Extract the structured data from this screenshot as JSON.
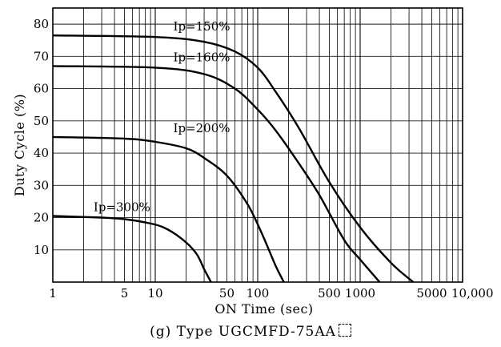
{
  "chart_data": {
    "type": "line",
    "xscale": "log",
    "xlabel": "ON Time (sec)",
    "ylabel": "Duty Cycle (%)",
    "xlim": [
      1,
      10000
    ],
    "ylim": [
      0,
      85
    ],
    "grid": true,
    "x_ticks": [
      {
        "value": 1,
        "label": "1"
      },
      {
        "value": 5,
        "label": "5"
      },
      {
        "value": 10,
        "label": "10"
      },
      {
        "value": 50,
        "label": "50"
      },
      {
        "value": 100,
        "label": "100"
      },
      {
        "value": 500,
        "label": "500"
      },
      {
        "value": 1000,
        "label": "1000"
      },
      {
        "value": 5000,
        "label": "5000"
      },
      {
        "value": 10000,
        "label": "10,000"
      }
    ],
    "y_ticks": [
      10,
      20,
      30,
      40,
      50,
      60,
      70,
      80
    ],
    "series": [
      {
        "name": "Ip=150%",
        "x": [
          1,
          10,
          30,
          60,
          100,
          150,
          250,
          500,
          1000,
          2000,
          3300
        ],
        "values": [
          76.5,
          76,
          74.5,
          71.5,
          66.5,
          59,
          48,
          31,
          17,
          6,
          0
        ]
      },
      {
        "name": "Ip=160%",
        "x": [
          1,
          10,
          30,
          60,
          100,
          150,
          250,
          400,
          700,
          1000,
          1550
        ],
        "values": [
          67,
          66.5,
          64.5,
          60,
          53.5,
          47,
          37,
          27,
          13,
          7,
          0
        ]
      },
      {
        "name": "Ip=200%",
        "x": [
          1,
          5,
          10,
          20,
          30,
          50,
          80,
          110,
          150,
          180
        ],
        "values": [
          45,
          44.5,
          43.5,
          41.5,
          38.5,
          33,
          24,
          15,
          5,
          0
        ]
      },
      {
        "name": "Ip=300%",
        "x": [
          1,
          3,
          5,
          8,
          12,
          18,
          25,
          30,
          35
        ],
        "values": [
          20.5,
          20,
          19.5,
          18.5,
          17,
          13.5,
          9,
          4,
          0
        ]
      }
    ],
    "title": "(g)  Type UGCMFD-75AA"
  }
}
